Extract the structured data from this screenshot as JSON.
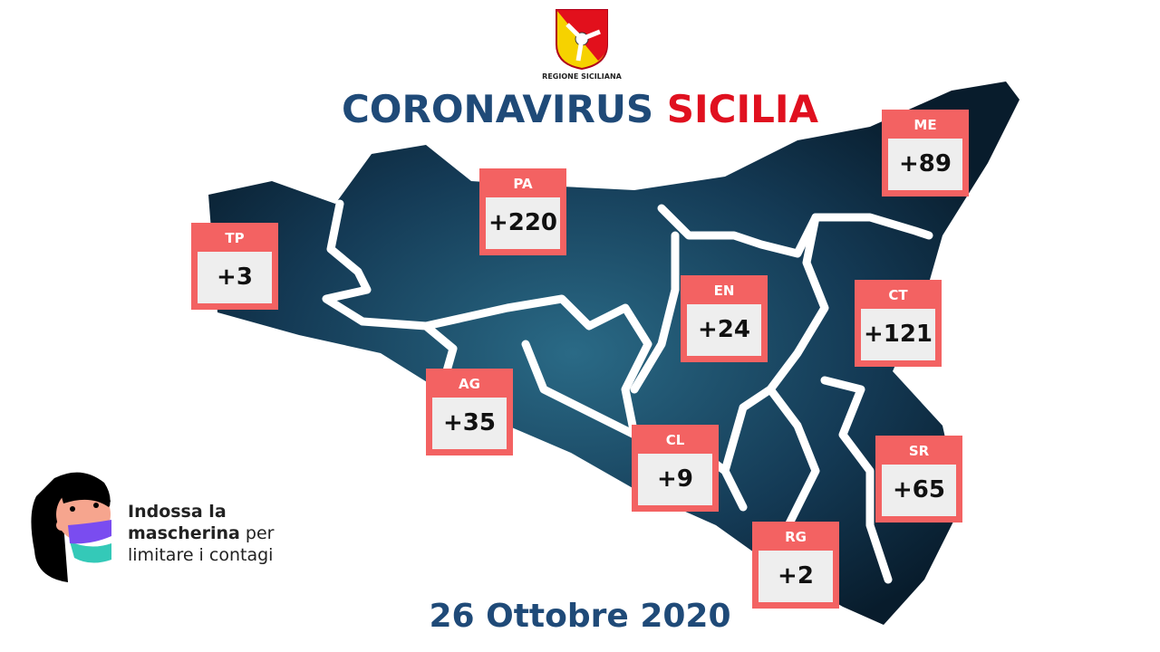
{
  "header": {
    "logo_text": "REGIONE SICILIANA",
    "title_part1": "CORONAVIRUS",
    "title_part2": "SICILIA"
  },
  "colors": {
    "title_blue": "#1f4a78",
    "title_red": "#e0101f",
    "box_coral": "#f36262",
    "map_dark": "#0d2a40"
  },
  "provinces": [
    {
      "code": "TP",
      "value": "+3"
    },
    {
      "code": "PA",
      "value": "+220"
    },
    {
      "code": "ME",
      "value": "+89"
    },
    {
      "code": "EN",
      "value": "+24"
    },
    {
      "code": "CT",
      "value": "+121"
    },
    {
      "code": "AG",
      "value": "+35"
    },
    {
      "code": "CL",
      "value": "+9"
    },
    {
      "code": "SR",
      "value": "+65"
    },
    {
      "code": "RG",
      "value": "+2"
    }
  ],
  "message": {
    "bold1": "Indossa la",
    "bold2": "mascherina",
    "normal1": " per",
    "normal2": "limitare i contagi"
  },
  "date": "26 Ottobre 2020"
}
